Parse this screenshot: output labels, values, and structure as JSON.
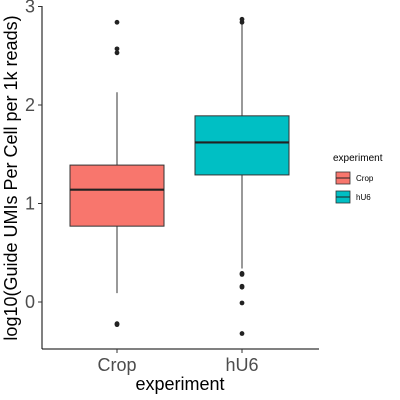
{
  "chart_data": {
    "type": "box",
    "xlabel": "experiment",
    "ylabel": "log10(Guide UMIs Per Cell per 1k reads)",
    "ylim": [
      -0.45,
      3.0
    ],
    "yticks": [
      0,
      1,
      2,
      3
    ],
    "categories": [
      "Crop",
      "hU6"
    ],
    "legend": {
      "title": "experiment",
      "position": "right",
      "entries": [
        "Crop",
        "hU6"
      ]
    },
    "colors": {
      "Crop": "#F8766D",
      "hU6": "#00BFC4"
    },
    "series": [
      {
        "name": "Crop",
        "whisker_low": 0.09,
        "q1": 0.77,
        "median": 1.14,
        "q3": 1.39,
        "whisker_high": 2.13,
        "outliers": [
          2.84,
          2.57,
          2.53,
          -0.22,
          -0.23
        ]
      },
      {
        "name": "hU6",
        "whisker_low": 0.34,
        "q1": 1.29,
        "median": 1.62,
        "q3": 1.89,
        "whisker_high": 2.82,
        "outliers": [
          2.87,
          2.84,
          0.29,
          0.28,
          0.16,
          0.15,
          -0.01,
          -0.32
        ]
      }
    ]
  }
}
